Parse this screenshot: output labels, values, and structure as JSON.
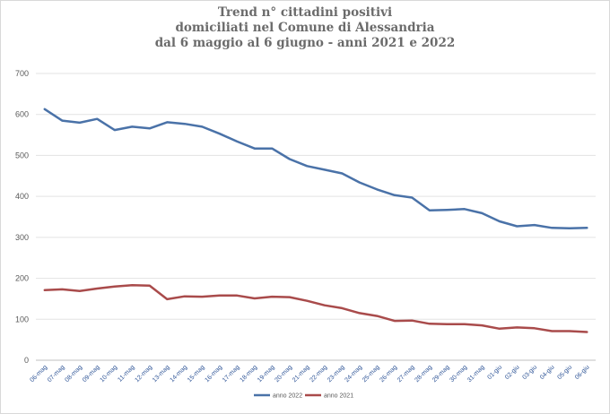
{
  "chart_data": {
    "type": "line",
    "title": [
      "Trend n° cittadini positivi",
      "domiciliati nel Comune di Alessandria",
      "dal 6 maggio al 6 giugno - anni 2021 e 2022"
    ],
    "categories": [
      "06-mag",
      "07-mag",
      "08-mag",
      "09-mag",
      "10-mag",
      "11-mag",
      "12-mag",
      "13-mag",
      "14-mag",
      "15-mag",
      "16-mag",
      "17-mag",
      "18-mag",
      "19-mag",
      "20-mag",
      "21-mag",
      "22-mag",
      "23-mag",
      "24-mag",
      "25-mag",
      "26-mag",
      "27-mag",
      "28-mag",
      "29-mag",
      "30-mag",
      "31-mag",
      "01-giu",
      "02-giu",
      "03-giu",
      "04-giu",
      "05-giu",
      "06-giu"
    ],
    "y_ticks": [
      "0",
      "100",
      "200",
      "300",
      "400",
      "500",
      "600",
      "700"
    ],
    "ylim": [
      0,
      700
    ],
    "grid": true,
    "legend_position": "bottom-left",
    "series": [
      {
        "name": "anno 2022",
        "color": "#4a72a8",
        "values": [
          613,
          585,
          580,
          589,
          562,
          570,
          566,
          581,
          577,
          570,
          553,
          534,
          517,
          517,
          491,
          474,
          465,
          456,
          434,
          417,
          403,
          397,
          366,
          367,
          369,
          359,
          339,
          327,
          330,
          323,
          322,
          323
        ]
      },
      {
        "name": "anno 2021",
        "color": "#a94b4b",
        "values": [
          171,
          173,
          169,
          175,
          180,
          183,
          182,
          149,
          156,
          155,
          158,
          158,
          151,
          155,
          154,
          145,
          134,
          127,
          115,
          108,
          96,
          97,
          89,
          88,
          88,
          85,
          77,
          80,
          78,
          71,
          71,
          69
        ]
      }
    ]
  }
}
